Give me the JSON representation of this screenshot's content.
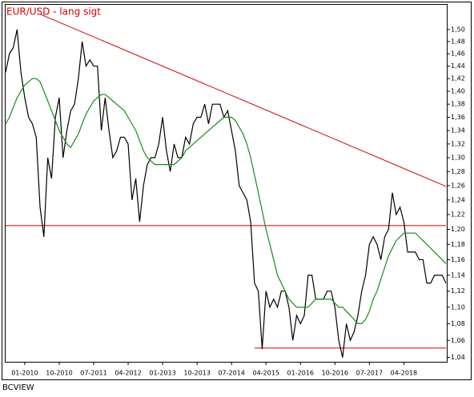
{
  "chart_data": {
    "type": "line",
    "title": "EUR/USD - lang sigt",
    "footer": "BCVIEW",
    "log": true,
    "x": [
      "08-2009",
      "09-2009",
      "10-2009",
      "11-2009",
      "12-2009",
      "01-2010",
      "02-2010",
      "03-2010",
      "04-2010",
      "05-2010",
      "06-2010",
      "07-2010",
      "08-2010",
      "09-2010",
      "10-2010",
      "11-2010",
      "12-2010",
      "01-2011",
      "02-2011",
      "03-2011",
      "04-2011",
      "05-2011",
      "06-2011",
      "07-2011",
      "08-2011",
      "09-2011",
      "10-2011",
      "11-2011",
      "12-2011",
      "01-2012",
      "02-2012",
      "03-2012",
      "04-2012",
      "05-2012",
      "06-2012",
      "07-2012",
      "08-2012",
      "09-2012",
      "10-2012",
      "11-2012",
      "12-2012",
      "01-2013",
      "02-2013",
      "03-2013",
      "04-2013",
      "05-2013",
      "06-2013",
      "07-2013",
      "08-2013",
      "09-2013",
      "10-2013",
      "11-2013",
      "12-2013",
      "01-2014",
      "02-2014",
      "03-2014",
      "04-2014",
      "05-2014",
      "06-2014",
      "07-2014",
      "08-2014",
      "09-2014",
      "10-2014",
      "11-2014",
      "12-2014",
      "01-2015",
      "02-2015",
      "03-2015",
      "04-2015",
      "05-2015",
      "06-2015",
      "07-2015",
      "08-2015",
      "09-2015",
      "10-2015",
      "11-2015",
      "12-2015",
      "01-2016",
      "02-2016",
      "03-2016",
      "04-2016",
      "05-2016",
      "06-2016",
      "07-2016",
      "08-2016",
      "09-2016",
      "10-2016",
      "11-2016",
      "12-2016",
      "01-2017",
      "02-2017",
      "03-2017",
      "04-2017",
      "05-2017",
      "06-2017",
      "07-2017",
      "08-2017",
      "09-2017",
      "10-2017",
      "11-2017",
      "12-2017",
      "01-2018",
      "02-2018",
      "03-2018",
      "04-2018",
      "05-2018",
      "06-2018",
      "07-2018",
      "08-2018",
      "09-2018",
      "10-2018",
      "11-2018",
      "12-2018",
      "01-2019",
      "02-2019",
      "03-2019"
    ],
    "series": [
      {
        "color": "#000000",
        "values": [
          1.43,
          1.46,
          1.47,
          1.5,
          1.43,
          1.39,
          1.36,
          1.35,
          1.33,
          1.23,
          1.19,
          1.3,
          1.27,
          1.36,
          1.39,
          1.3,
          1.34,
          1.37,
          1.38,
          1.42,
          1.48,
          1.44,
          1.45,
          1.44,
          1.44,
          1.34,
          1.39,
          1.34,
          1.3,
          1.31,
          1.33,
          1.33,
          1.32,
          1.24,
          1.27,
          1.21,
          1.26,
          1.29,
          1.3,
          1.3,
          1.32,
          1.36,
          1.31,
          1.28,
          1.32,
          1.3,
          1.3,
          1.33,
          1.32,
          1.35,
          1.36,
          1.36,
          1.38,
          1.35,
          1.38,
          1.38,
          1.38,
          1.36,
          1.37,
          1.34,
          1.31,
          1.26,
          1.25,
          1.24,
          1.21,
          1.13,
          1.12,
          1.05,
          1.12,
          1.1,
          1.11,
          1.1,
          1.12,
          1.12,
          1.1,
          1.06,
          1.09,
          1.08,
          1.09,
          1.14,
          1.14,
          1.11,
          1.11,
          1.11,
          1.12,
          1.12,
          1.1,
          1.06,
          1.04,
          1.08,
          1.06,
          1.07,
          1.09,
          1.12,
          1.14,
          1.18,
          1.19,
          1.18,
          1.16,
          1.19,
          1.2,
          1.25,
          1.22,
          1.23,
          1.21,
          1.17,
          1.17,
          1.17,
          1.16,
          1.16,
          1.13,
          1.13,
          1.14,
          1.14,
          1.14,
          1.13
        ]
      },
      {
        "color": "#1a8a1a",
        "values": [
          1.35,
          1.36,
          1.375,
          1.39,
          1.4,
          1.41,
          1.415,
          1.42,
          1.42,
          1.415,
          1.4,
          1.385,
          1.37,
          1.355,
          1.34,
          1.33,
          1.32,
          1.315,
          1.325,
          1.335,
          1.35,
          1.365,
          1.375,
          1.385,
          1.39,
          1.395,
          1.395,
          1.39,
          1.385,
          1.38,
          1.375,
          1.37,
          1.36,
          1.35,
          1.34,
          1.325,
          1.31,
          1.3,
          1.295,
          1.29,
          1.29,
          1.29,
          1.29,
          1.29,
          1.29,
          1.295,
          1.3,
          1.31,
          1.315,
          1.32,
          1.325,
          1.33,
          1.335,
          1.34,
          1.345,
          1.35,
          1.355,
          1.36,
          1.36,
          1.36,
          1.355,
          1.345,
          1.335,
          1.32,
          1.3,
          1.275,
          1.25,
          1.225,
          1.2,
          1.18,
          1.16,
          1.14,
          1.13,
          1.12,
          1.11,
          1.105,
          1.1,
          1.1,
          1.1,
          1.1,
          1.105,
          1.11,
          1.11,
          1.11,
          1.11,
          1.11,
          1.105,
          1.1,
          1.1,
          1.095,
          1.09,
          1.085,
          1.08,
          1.08,
          1.085,
          1.095,
          1.11,
          1.12,
          1.135,
          1.15,
          1.165,
          1.175,
          1.185,
          1.19,
          1.195,
          1.195,
          1.195,
          1.195,
          1.19,
          1.185,
          1.18,
          1.175,
          1.17,
          1.165,
          1.16,
          1.155
        ]
      }
    ],
    "lines": [
      {
        "color": "#d40000",
        "x": [
          "05-2010",
          "03-2019"
        ],
        "y": [
          1.526,
          1.259
        ]
      },
      {
        "color": "#d40000",
        "x": [
          "08-2009",
          "03-2019"
        ],
        "y": [
          1.205,
          1.205
        ]
      },
      {
        "color": "#d40000",
        "x": [
          "01-2015",
          "03-2019"
        ],
        "y": [
          1.051,
          1.051
        ]
      }
    ],
    "xticks": [
      "01-2010",
      "10-2010",
      "07-2011",
      "04-2012",
      "01-2013",
      "10-2013",
      "07-2014",
      "04-2015",
      "01-2016",
      "10-2016",
      "07-2017",
      "04-2018"
    ],
    "ylim": [
      1.035,
      1.542
    ],
    "yticks": [
      {
        "value": 1.5,
        "label": "1,50"
      },
      {
        "value": 1.48,
        "label": "1,48"
      },
      {
        "value": 1.46,
        "label": "1,46"
      },
      {
        "value": 1.44,
        "label": "1,44"
      },
      {
        "value": 1.42,
        "label": "1,42"
      },
      {
        "value": 1.4,
        "label": "1,40"
      },
      {
        "value": 1.38,
        "label": "1,38"
      },
      {
        "value": 1.36,
        "label": "1,36"
      },
      {
        "value": 1.34,
        "label": "1,34"
      },
      {
        "value": 1.32,
        "label": "1,32"
      },
      {
        "value": 1.3,
        "label": "1,30"
      },
      {
        "value": 1.28,
        "label": "1,28"
      },
      {
        "value": 1.26,
        "label": "1,26"
      },
      {
        "value": 1.24,
        "label": "1,24"
      },
      {
        "value": 1.22,
        "label": "1,22"
      },
      {
        "value": 1.2,
        "label": "1,20"
      },
      {
        "value": 1.18,
        "label": "1,18"
      },
      {
        "value": 1.16,
        "label": "1,16"
      },
      {
        "value": 1.14,
        "label": "1,14"
      },
      {
        "value": 1.12,
        "label": "1,12"
      },
      {
        "value": 1.1,
        "label": "1,10"
      },
      {
        "value": 1.08,
        "label": "1,08"
      },
      {
        "value": 1.06,
        "label": "1,06"
      },
      {
        "value": 1.04,
        "label": "1,04"
      }
    ]
  }
}
